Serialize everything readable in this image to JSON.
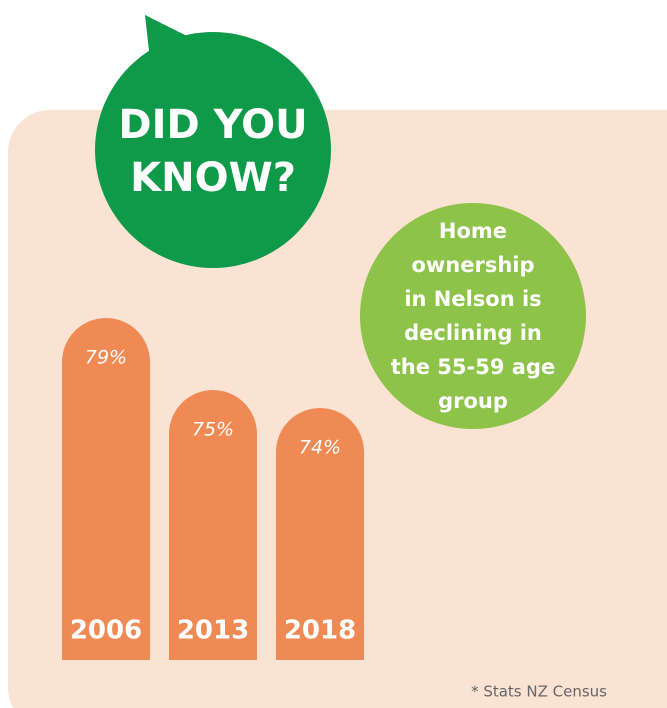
{
  "chart_data": {
    "type": "bar",
    "title": [
      "DID YOU",
      "KNOW?"
    ],
    "annotation": [
      "Home",
      "ownership",
      "in Nelson is",
      "declining in",
      "the 55-59 age",
      "group"
    ],
    "source": "* Stats NZ Census",
    "categories": [
      "2006",
      "2013",
      "2018"
    ],
    "values": [
      79,
      75,
      74
    ],
    "value_labels": [
      "79%",
      "75%",
      "74%"
    ],
    "color": "#ef8a55",
    "ylim": [
      60,
      80
    ]
  }
}
